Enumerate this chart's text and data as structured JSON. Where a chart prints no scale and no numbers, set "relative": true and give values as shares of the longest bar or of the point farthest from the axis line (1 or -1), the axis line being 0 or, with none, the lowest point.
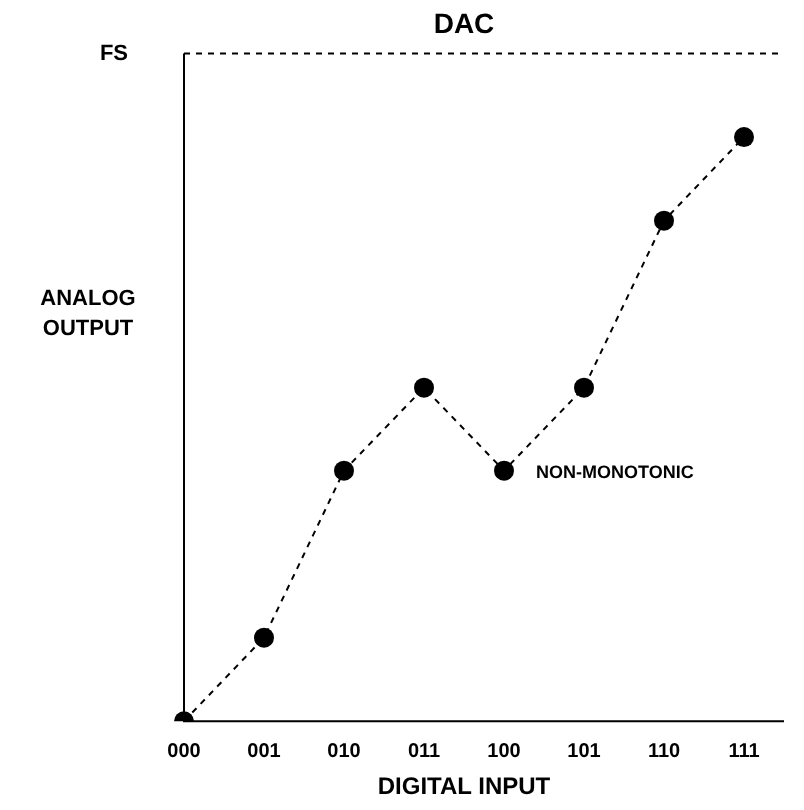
{
  "chart_data": {
    "type": "line",
    "title": "DAC",
    "xlabel": "DIGITAL INPUT",
    "ylabel": "ANALOG OUTPUT",
    "relative": true,
    "categories": [
      "000",
      "001",
      "010",
      "011",
      "100",
      "101",
      "110",
      "111"
    ],
    "series": [
      {
        "color": "#000000",
        "values": [
          0,
          0.143,
          0.429,
          0.571,
          0.429,
          0.571,
          0.857,
          1
        ]
      }
    ],
    "marker": "circle",
    "line_style": "dashed",
    "grid": false,
    "legend": false,
    "ref_lines": [
      {
        "axis": "y",
        "value": 1.143,
        "label": "FS",
        "line_style": "dashed",
        "color": "#000000"
      }
    ],
    "annotations": [
      {
        "text": "NON-MONOTONIC",
        "x": "100",
        "y": 0.429
      }
    ]
  }
}
